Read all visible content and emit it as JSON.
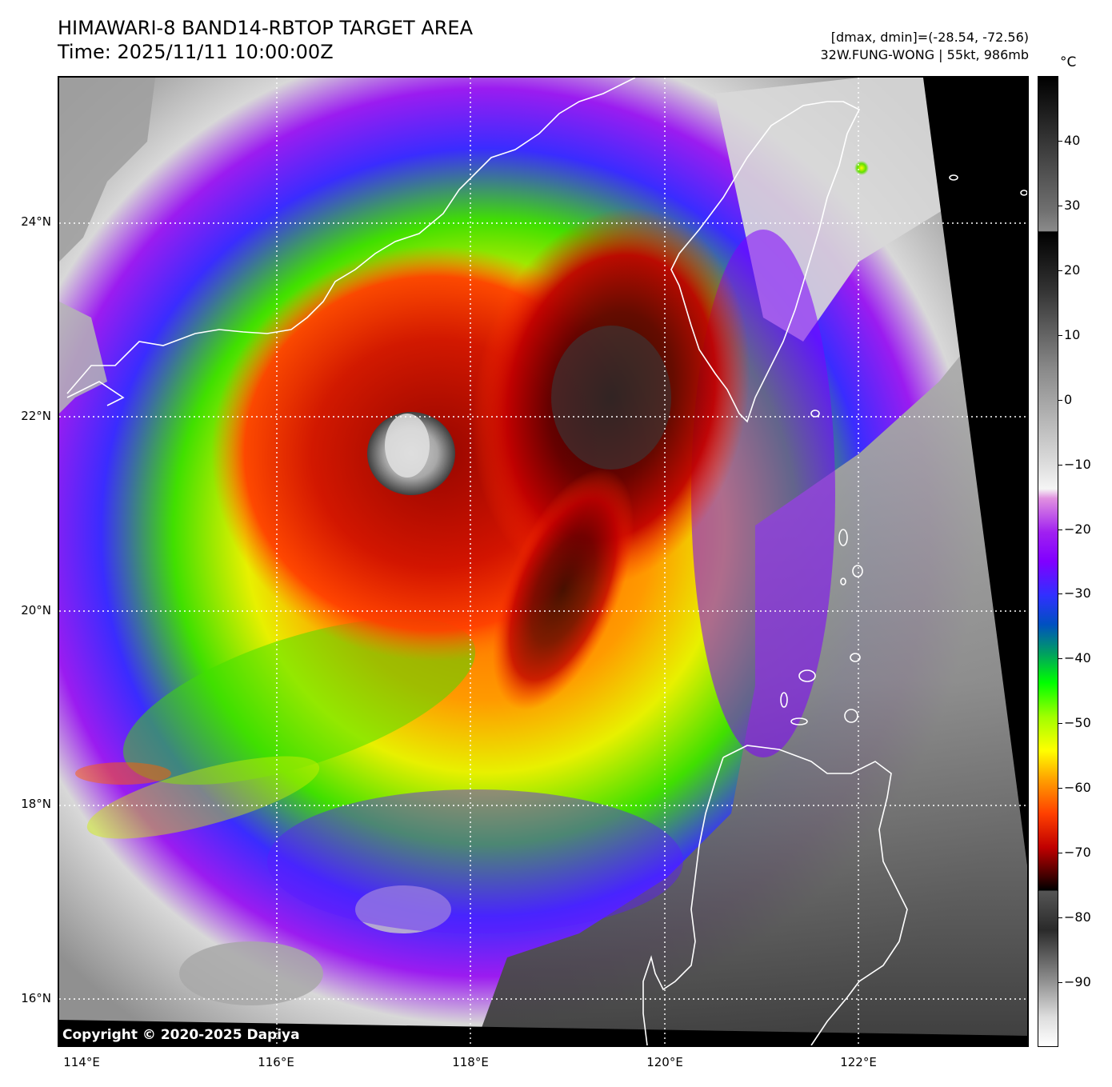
{
  "header": {
    "title_line1": "HIMAWARI-8 BAND14-RBTOP TARGET AREA",
    "title_line2": "Time: 2025/11/11 10:00:00Z",
    "meta_line1": "[dmax, dmin]=(-28.54, -72.56)",
    "meta_line2": "32W.FUNG-WONG | 55kt, 986mb"
  },
  "map": {
    "lat_labels": [
      "24°N",
      "22°N",
      "20°N",
      "18°N",
      "16°N"
    ],
    "lon_labels": [
      "114°E",
      "116°E",
      "118°E",
      "120°E",
      "122°E"
    ],
    "copyright": "Copyright © 2020-2025 Dapiya",
    "colors": {
      "gridlines": "#ffffff",
      "coastline": "#ffffff",
      "no_data": "#000000"
    }
  },
  "colorbar": {
    "unit": "°C",
    "tick_labels": [
      "40",
      "30",
      "20",
      "10",
      "0",
      "−10",
      "−20",
      "−30",
      "−40",
      "−50",
      "−60",
      "−70",
      "−80",
      "−90"
    ],
    "tick_values": [
      40,
      30,
      20,
      10,
      0,
      -10,
      -20,
      -30,
      -40,
      -50,
      -60,
      -70,
      -80,
      -90
    ],
    "range": [
      -100,
      50
    ]
  }
}
